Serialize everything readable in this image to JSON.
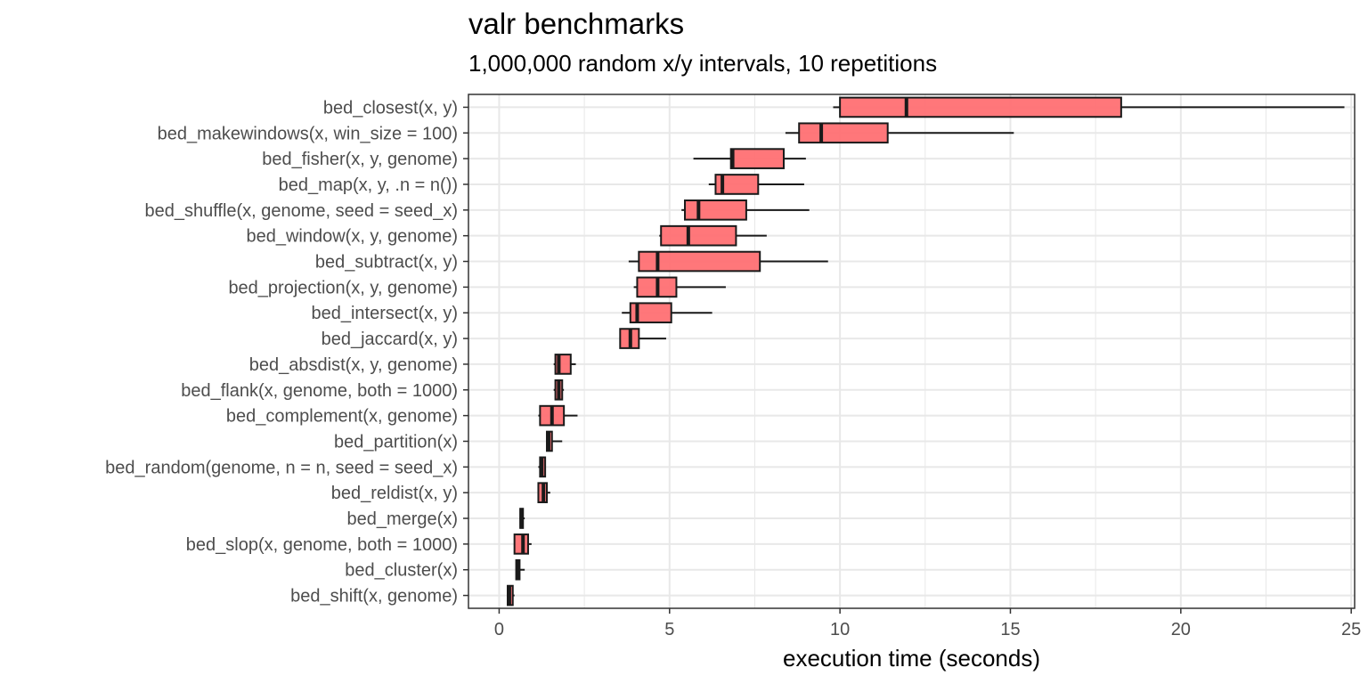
{
  "chart_data": {
    "type": "boxplot",
    "orientation": "horizontal",
    "title": "valr benchmarks",
    "subtitle": "1,000,000 random x/y intervals, 10 repetitions",
    "xlabel": "execution time (seconds)",
    "ylabel": "",
    "xlim": [
      -0.9,
      25.1
    ],
    "xticks": [
      0,
      5,
      10,
      15,
      20,
      25
    ],
    "xtick_labels": [
      "0",
      "5",
      "10",
      "15",
      "20",
      "25"
    ],
    "grid": true,
    "legend": "none",
    "colors": {
      "box_fill": "#ff6b6f",
      "box_stroke": "#1a1a1a",
      "grid": "#e8e8e8",
      "panel_border": "#333333"
    },
    "categories": [
      "bed_closest(x, y)",
      "bed_makewindows(x, win_size = 100)",
      "bed_fisher(x, y, genome)",
      "bed_map(x, y, .n = n())",
      "bed_shuffle(x, genome, seed = seed_x)",
      "bed_window(x, y, genome)",
      "bed_subtract(x, y)",
      "bed_projection(x, y, genome)",
      "bed_intersect(x, y)",
      "bed_jaccard(x, y)",
      "bed_absdist(x, y, genome)",
      "bed_flank(x, genome, both = 1000)",
      "bed_complement(x, genome)",
      "bed_partition(x)",
      "bed_random(genome, n = n, seed = seed_x)",
      "bed_reldist(x, y)",
      "bed_merge(x)",
      "bed_slop(x, genome, both = 1000)",
      "bed_cluster(x)",
      "bed_shift(x, genome)"
    ],
    "boxes": [
      {
        "min": 9.8,
        "q1": 10.0,
        "median": 11.95,
        "q3": 18.25,
        "max": 24.8
      },
      {
        "min": 8.4,
        "q1": 8.8,
        "median": 9.45,
        "q3": 11.4,
        "max": 15.1
      },
      {
        "min": 5.7,
        "q1": 6.8,
        "median": 6.85,
        "q3": 8.35,
        "max": 9.0
      },
      {
        "min": 6.15,
        "q1": 6.35,
        "median": 6.55,
        "q3": 7.6,
        "max": 8.95
      },
      {
        "min": 5.35,
        "q1": 5.45,
        "median": 5.85,
        "q3": 7.25,
        "max": 9.1
      },
      {
        "min": 4.7,
        "q1": 4.75,
        "median": 5.55,
        "q3": 6.95,
        "max": 7.85
      },
      {
        "min": 3.8,
        "q1": 4.1,
        "median": 4.65,
        "q3": 7.65,
        "max": 9.65
      },
      {
        "min": 3.95,
        "q1": 4.05,
        "median": 4.65,
        "q3": 5.2,
        "max": 6.65
      },
      {
        "min": 3.6,
        "q1": 3.85,
        "median": 4.05,
        "q3": 5.05,
        "max": 6.25
      },
      {
        "min": 3.55,
        "q1": 3.55,
        "median": 3.85,
        "q3": 4.1,
        "max": 4.9
      },
      {
        "min": 1.6,
        "q1": 1.65,
        "median": 1.75,
        "q3": 2.1,
        "max": 2.25
      },
      {
        "min": 1.6,
        "q1": 1.65,
        "median": 1.75,
        "q3": 1.85,
        "max": 1.9
      },
      {
        "min": 1.15,
        "q1": 1.2,
        "median": 1.55,
        "q3": 1.9,
        "max": 2.3
      },
      {
        "min": 1.4,
        "q1": 1.4,
        "median": 1.45,
        "q3": 1.55,
        "max": 1.85
      },
      {
        "min": 1.15,
        "q1": 1.2,
        "median": 1.25,
        "q3": 1.35,
        "max": 1.35
      },
      {
        "min": 1.15,
        "q1": 1.15,
        "median": 1.3,
        "q3": 1.4,
        "max": 1.5
      },
      {
        "min": 0.6,
        "q1": 0.62,
        "median": 0.65,
        "q3": 0.7,
        "max": 0.75
      },
      {
        "min": 0.45,
        "q1": 0.45,
        "median": 0.7,
        "q3": 0.85,
        "max": 0.95
      },
      {
        "min": 0.5,
        "q1": 0.5,
        "median": 0.55,
        "q3": 0.6,
        "max": 0.75
      },
      {
        "min": 0.25,
        "q1": 0.25,
        "median": 0.3,
        "q3": 0.4,
        "max": 0.45
      }
    ]
  }
}
